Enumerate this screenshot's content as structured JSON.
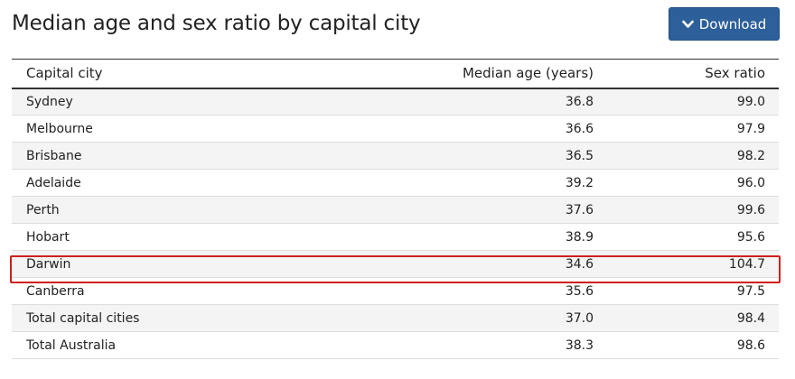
{
  "title": "Median age and sex ratio by capital city",
  "download": {
    "label": "Download",
    "icon": "chevron-down-icon"
  },
  "table": {
    "headers": {
      "city": "Capital city",
      "age": "Median age (years)",
      "ratio": "Sex ratio"
    },
    "rows": [
      {
        "city": "Sydney",
        "age": "36.8",
        "ratio": "99.0"
      },
      {
        "city": "Melbourne",
        "age": "36.6",
        "ratio": "97.9"
      },
      {
        "city": "Brisbane",
        "age": "36.5",
        "ratio": "98.2"
      },
      {
        "city": "Adelaide",
        "age": "39.2",
        "ratio": "96.0"
      },
      {
        "city": "Perth",
        "age": "37.6",
        "ratio": "99.6"
      },
      {
        "city": "Hobart",
        "age": "38.9",
        "ratio": "95.6"
      },
      {
        "city": "Darwin",
        "age": "34.6",
        "ratio": "104.7",
        "highlighted": true
      },
      {
        "city": "Canberra",
        "age": "35.6",
        "ratio": "97.5"
      },
      {
        "city": "Total capital cities",
        "age": "37.0",
        "ratio": "98.4"
      },
      {
        "city": "Total Australia",
        "age": "38.3",
        "ratio": "98.6"
      }
    ]
  },
  "colors": {
    "button": "#2d5f9a",
    "highlight": "#cc2020",
    "row_alt": "#f4f4f4"
  }
}
